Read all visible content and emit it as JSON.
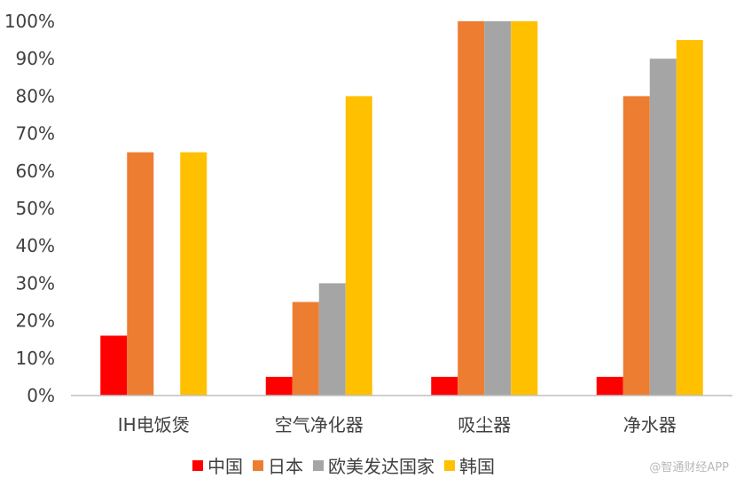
{
  "chart_data": {
    "type": "bar",
    "title": "",
    "xlabel": "",
    "ylabel": "",
    "ylim": [
      0,
      100
    ],
    "yticks": [
      "0%",
      "10%",
      "20%",
      "30%",
      "40%",
      "50%",
      "60%",
      "70%",
      "80%",
      "90%",
      "100%"
    ],
    "categories": [
      "IH电饭煲",
      "空气净化器",
      "吸尘器",
      "净水器"
    ],
    "series": [
      {
        "name": "中国",
        "color": "#ff0000",
        "values": [
          16,
          5,
          5,
          5
        ]
      },
      {
        "name": "日本",
        "color": "#ed7d31",
        "values": [
          65,
          25,
          100,
          80
        ]
      },
      {
        "name": "欧美发达国家",
        "color": "#a5a5a5",
        "values": [
          null,
          30,
          100,
          90
        ]
      },
      {
        "name": "韩国",
        "color": "#ffc000",
        "values": [
          65,
          80,
          100,
          95
        ]
      }
    ],
    "grid": false,
    "legend_position": "bottom"
  },
  "watermark": "@智通财经APP"
}
